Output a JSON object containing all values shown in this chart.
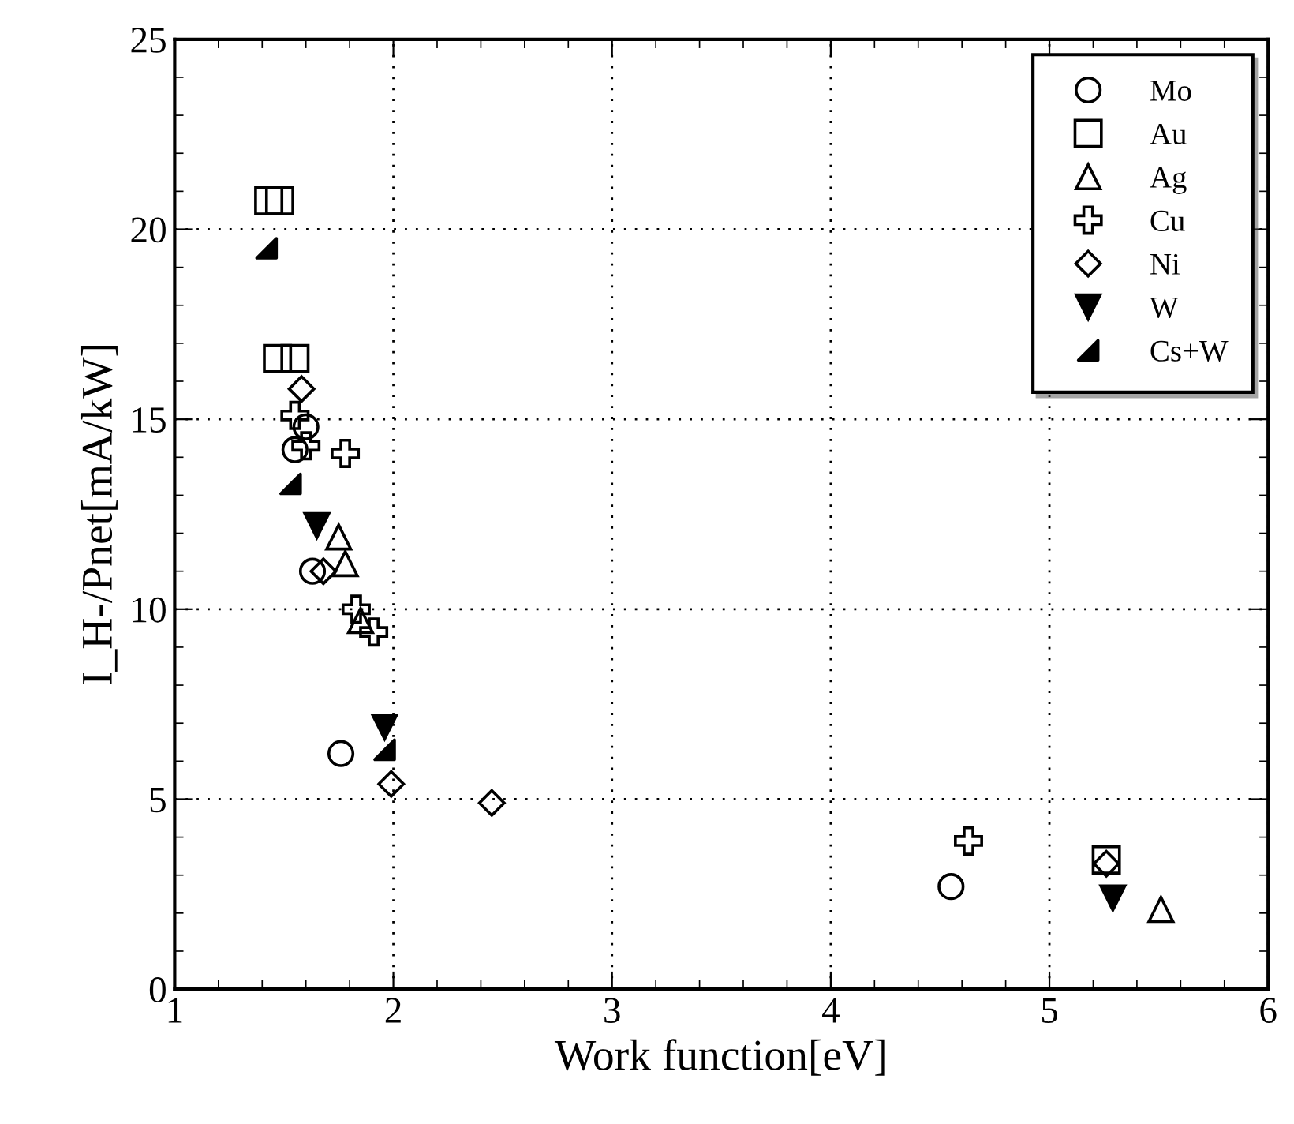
{
  "chart_data": {
    "type": "scatter",
    "xlabel": "Work function[eV]",
    "ylabel": "I_H-/Pnet[mA/kW]",
    "xlim": [
      1,
      6
    ],
    "xticks": [
      1,
      2,
      3,
      4,
      5,
      6
    ],
    "ylim": [
      0,
      25
    ],
    "yticks": [
      0,
      5,
      10,
      15,
      20,
      25
    ],
    "grid": true,
    "legend": "top right",
    "series": [
      {
        "name": "Mo",
        "color": "#000000",
        "marker": "circle",
        "x": [
          1.6,
          1.55,
          1.63,
          1.76,
          4.55
        ],
        "values": [
          14.8,
          14.2,
          11.0,
          6.2,
          2.7
        ]
      },
      {
        "name": "Au",
        "color": "#000000",
        "marker": "square",
        "x": [
          1.43,
          1.48,
          1.47,
          1.55,
          5.26
        ],
        "values": [
          20.75,
          20.75,
          16.6,
          16.6,
          3.4
        ]
      },
      {
        "name": "Ag",
        "color": "#000000",
        "marker": "triangle",
        "x": [
          1.75,
          1.78,
          1.85,
          5.51
        ],
        "values": [
          11.9,
          11.2,
          9.7,
          2.1
        ]
      },
      {
        "name": "Cu",
        "color": "#000000",
        "marker": "cross",
        "x": [
          1.55,
          1.6,
          1.78,
          1.83,
          1.91,
          4.63
        ],
        "values": [
          15.1,
          14.3,
          14.1,
          10.0,
          9.4,
          3.9
        ]
      },
      {
        "name": "Ni",
        "color": "#000000",
        "marker": "diamond",
        "x": [
          1.58,
          1.68,
          1.99,
          2.45,
          5.26
        ],
        "values": [
          15.8,
          11.0,
          5.4,
          4.9,
          3.3
        ]
      },
      {
        "name": "W",
        "color": "#000000",
        "marker": "triangle",
        "x": [
          1.65,
          1.96,
          5.29
        ],
        "values": [
          12.2,
          6.9,
          2.4
        ]
      },
      {
        "name": "Cs+W",
        "color": "#000000",
        "marker": "triangle",
        "x": [
          1.42,
          1.53,
          1.96
        ],
        "values": [
          19.5,
          13.3,
          6.3
        ]
      }
    ]
  }
}
